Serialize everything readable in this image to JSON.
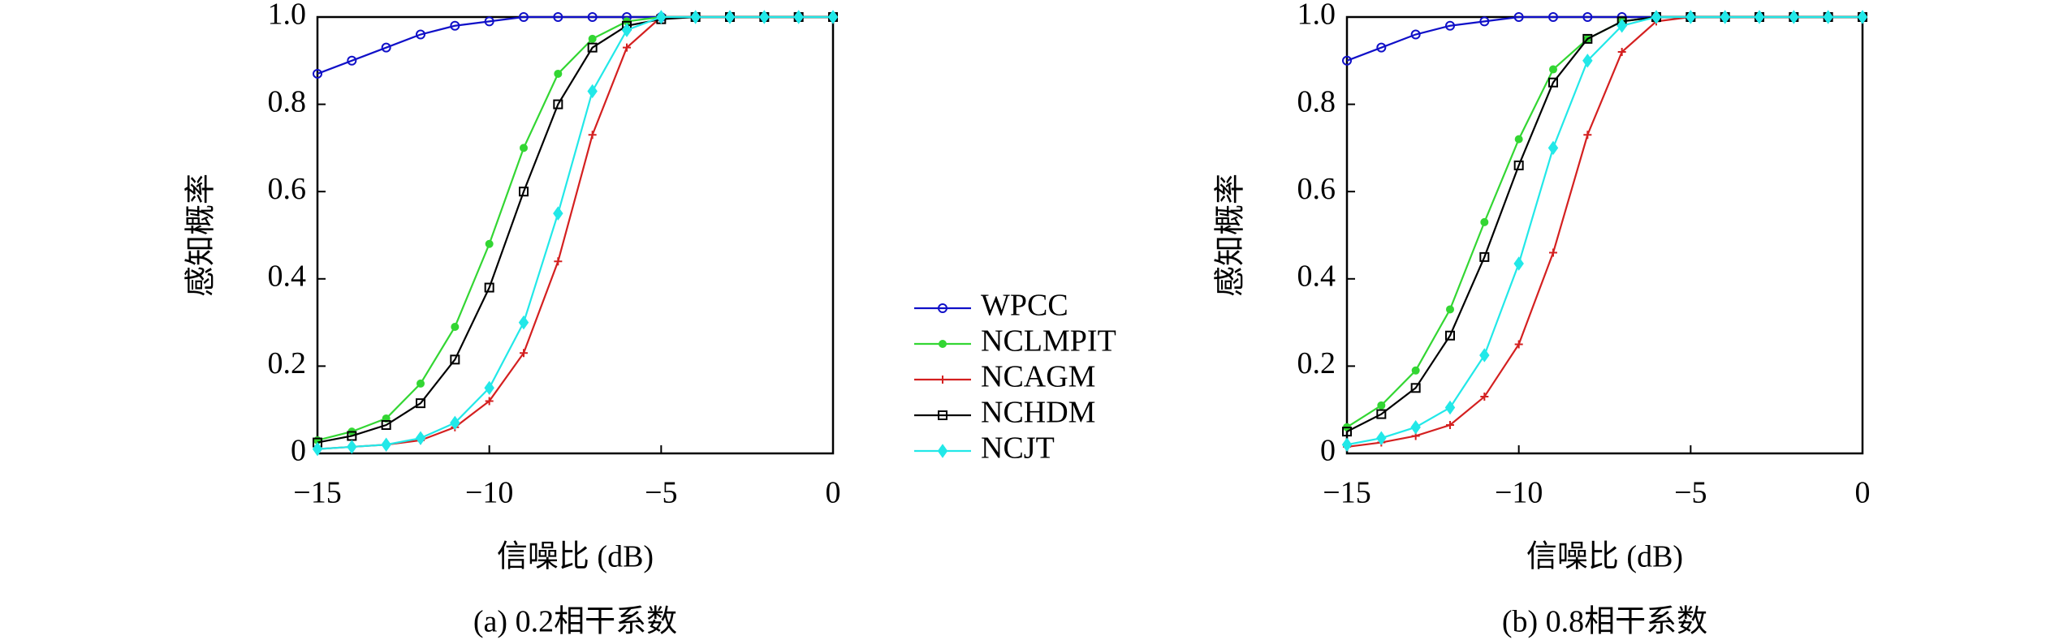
{
  "chart_data": [
    {
      "type": "line",
      "caption": "(a) 0.2相干系数",
      "x_label": "信噪比 (dB)",
      "y_label": "感知概率",
      "x": [
        -15,
        -14,
        -13,
        -12,
        -11,
        -10,
        -9,
        -8,
        -7,
        -6,
        -5,
        -4,
        -3,
        -2,
        -1,
        0
      ],
      "xlim": [
        -15,
        0
      ],
      "xticks": [
        {
          "value": -15,
          "label": "−15"
        },
        {
          "value": -10,
          "label": "−10"
        },
        {
          "value": -5,
          "label": "−5"
        },
        0
      ],
      "ylim": [
        0,
        1
      ],
      "yticks": [
        0,
        0.2,
        0.4,
        0.6,
        0.8,
        {
          "value": 1,
          "label": "1.0"
        }
      ],
      "legend": "right",
      "series": [
        {
          "name": "WPCC",
          "color": "#1010c8",
          "marker": "circle",
          "values": [
            0.87,
            0.9,
            0.93,
            0.96,
            0.98,
            0.99,
            1,
            1,
            1,
            1,
            1,
            1,
            1,
            1,
            1,
            1
          ]
        },
        {
          "name": "NCLMPIT",
          "color": "#33d633",
          "marker": "dot",
          "values": [
            0.03,
            0.05,
            0.08,
            0.16,
            0.29,
            0.48,
            0.7,
            0.87,
            0.95,
            0.99,
            1,
            1,
            1,
            1,
            1,
            1
          ]
        },
        {
          "name": "NCAGM",
          "color": "#d42020",
          "marker": "cross",
          "values": [
            0.01,
            0.015,
            0.02,
            0.03,
            0.06,
            0.12,
            0.23,
            0.44,
            0.73,
            0.93,
            1,
            1,
            1,
            1,
            1,
            1
          ]
        },
        {
          "name": "NCHDM",
          "color": "#000000",
          "marker": "square",
          "values": [
            0.025,
            0.04,
            0.065,
            0.115,
            0.215,
            0.38,
            0.6,
            0.8,
            0.93,
            0.98,
            0.995,
            1,
            1,
            1,
            1,
            1
          ]
        },
        {
          "name": "NCJT",
          "color": "#22e8e8",
          "marker": "diamond",
          "values": [
            0.01,
            0.015,
            0.02,
            0.035,
            0.07,
            0.15,
            0.3,
            0.55,
            0.83,
            0.97,
            1,
            1,
            1,
            1,
            1,
            1
          ]
        }
      ]
    },
    {
      "type": "line",
      "caption": "(b) 0.8相干系数",
      "x_label": "信噪比 (dB)",
      "y_label": "感知概率",
      "x": [
        -15,
        -14,
        -13,
        -12,
        -11,
        -10,
        -9,
        -8,
        -7,
        -6,
        -5,
        -4,
        -3,
        -2,
        -1,
        0
      ],
      "xlim": [
        -15,
        0
      ],
      "xticks": [
        {
          "value": -15,
          "label": "−15"
        },
        {
          "value": -10,
          "label": "−10"
        },
        {
          "value": -5,
          "label": "−5"
        },
        0
      ],
      "ylim": [
        0,
        1
      ],
      "yticks": [
        0,
        0.2,
        0.4,
        0.6,
        0.8,
        {
          "value": 1,
          "label": "1.0"
        }
      ],
      "series": [
        {
          "name": "WPCC",
          "color": "#1010c8",
          "marker": "circle",
          "values": [
            0.9,
            0.93,
            0.96,
            0.98,
            0.99,
            1,
            1,
            1,
            1,
            1,
            1,
            1,
            1,
            1,
            1,
            1
          ]
        },
        {
          "name": "NCLMPIT",
          "color": "#33d633",
          "marker": "dot",
          "values": [
            0.06,
            0.11,
            0.19,
            0.33,
            0.53,
            0.72,
            0.88,
            0.95,
            0.99,
            1,
            1,
            1,
            1,
            1,
            1,
            1
          ]
        },
        {
          "name": "NCAGM",
          "color": "#d42020",
          "marker": "cross",
          "values": [
            0.015,
            0.025,
            0.04,
            0.065,
            0.13,
            0.25,
            0.46,
            0.73,
            0.92,
            0.99,
            1,
            1,
            1,
            1,
            1,
            1
          ]
        },
        {
          "name": "NCHDM",
          "color": "#000000",
          "marker": "square",
          "values": [
            0.05,
            0.09,
            0.15,
            0.27,
            0.45,
            0.66,
            0.85,
            0.95,
            0.99,
            1,
            1,
            1,
            1,
            1,
            1,
            1
          ]
        },
        {
          "name": "NCJT",
          "color": "#22e8e8",
          "marker": "diamond",
          "values": [
            0.02,
            0.035,
            0.06,
            0.105,
            0.225,
            0.435,
            0.7,
            0.9,
            0.98,
            1,
            1,
            1,
            1,
            1,
            1,
            1
          ]
        }
      ]
    }
  ]
}
